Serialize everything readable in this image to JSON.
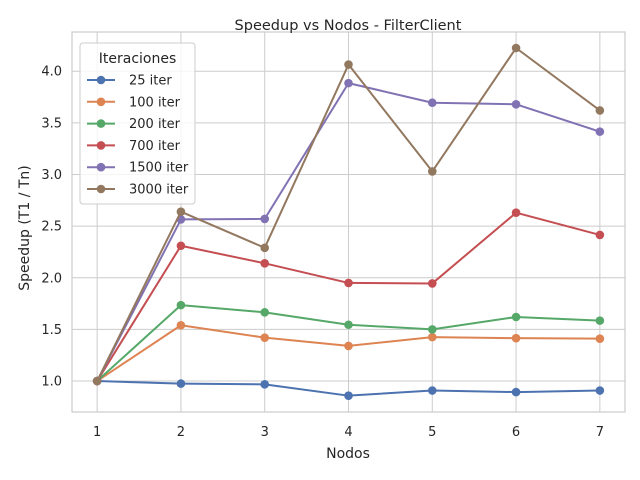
{
  "chart_data": {
    "type": "line",
    "title": "Speedup vs Nodos - FilterClient",
    "xlabel": "Nodos",
    "ylabel": "Speedup (T1 / Tn)",
    "x": [
      1,
      2,
      3,
      4,
      5,
      6,
      7
    ],
    "xticks": [
      "1",
      "2",
      "3",
      "4",
      "5",
      "6",
      "7"
    ],
    "yticks": [
      "1.0",
      "1.5",
      "2.0",
      "2.5",
      "3.0",
      "3.5",
      "4.0"
    ],
    "xlim": [
      0.7,
      7.3
    ],
    "ylim": [
      0.7,
      4.38
    ],
    "grid": true,
    "legend_title": "Iteraciones",
    "legend_position": "top-left",
    "series": [
      {
        "name": "25 iter",
        "color": "#4c72b0",
        "values": [
          1.0,
          0.975,
          0.968,
          0.858,
          0.908,
          0.893,
          0.908
        ]
      },
      {
        "name": "100 iter",
        "color": "#dd8452",
        "values": [
          1.0,
          1.54,
          1.42,
          1.34,
          1.425,
          1.415,
          1.41
        ]
      },
      {
        "name": "200 iter",
        "color": "#55a868",
        "values": [
          1.0,
          1.735,
          1.665,
          1.545,
          1.5,
          1.62,
          1.585
        ]
      },
      {
        "name": "700 iter",
        "color": "#c44e52",
        "values": [
          1.0,
          2.31,
          2.14,
          1.95,
          1.945,
          2.63,
          2.415
        ]
      },
      {
        "name": "1500 iter",
        "color": "#8172b3",
        "values": [
          1.0,
          2.565,
          2.57,
          3.885,
          3.695,
          3.68,
          3.415
        ]
      },
      {
        "name": "3000 iter",
        "color": "#937860",
        "values": [
          1.0,
          2.64,
          2.29,
          4.065,
          3.03,
          4.225,
          3.62
        ]
      }
    ]
  }
}
